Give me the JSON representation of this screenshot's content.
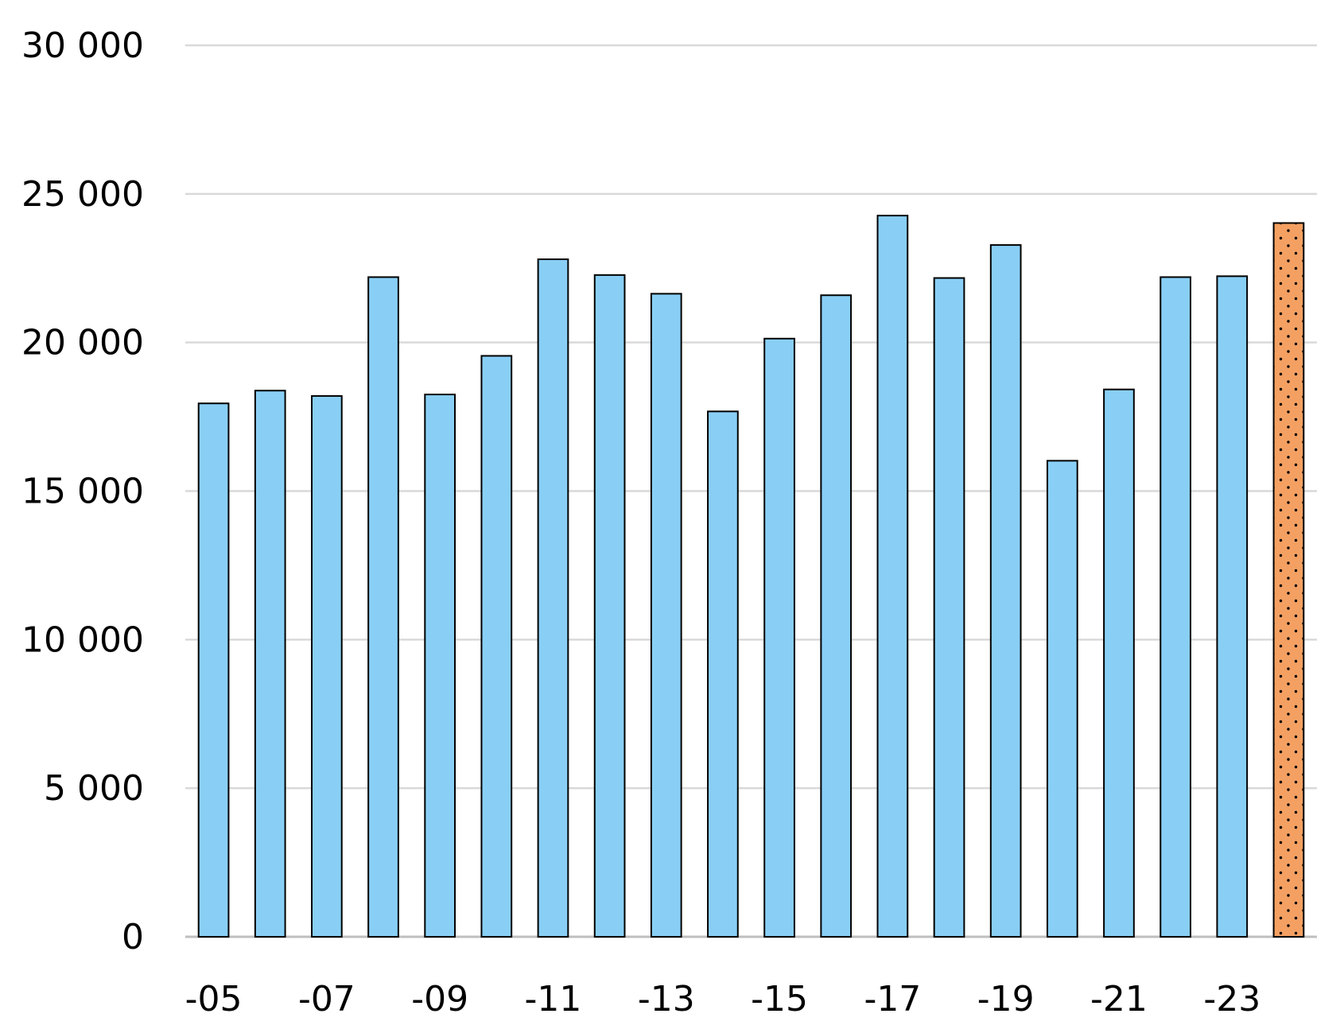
{
  "chart_data": {
    "type": "bar",
    "title": "",
    "xlabel": "",
    "ylabel": "",
    "ylim": [
      0,
      30000
    ],
    "yticks": [
      0,
      5000,
      10000,
      15000,
      20000,
      25000,
      30000
    ],
    "ytick_labels": [
      "0",
      "5 000",
      "10 000",
      "15 000",
      "20 000",
      "25 000",
      "30 000"
    ],
    "xtick_labels": [
      "-05",
      "-07",
      "-09",
      "-11",
      "-13",
      "-15",
      "-17",
      "-19",
      "-21",
      "-23"
    ],
    "grid": true,
    "legend": "none",
    "categories": [
      "2005",
      "2006",
      "2007",
      "2008",
      "2009",
      "2010",
      "2011",
      "2012",
      "2013",
      "2014",
      "2015",
      "2016",
      "2017",
      "2018",
      "2019",
      "2020",
      "2021",
      "2022",
      "2023",
      "2024"
    ],
    "values": [
      17950,
      18380,
      18200,
      22200,
      18250,
      19550,
      22800,
      22270,
      21640,
      17680,
      20130,
      21590,
      24270,
      22170,
      23280,
      16020,
      18420,
      22200,
      22230,
      24020
    ],
    "highlight_index": 19,
    "colors": {
      "bar": "#89cff5",
      "highlight": "#f4a062",
      "outline": "#000000",
      "grid": "#d9d9d9",
      "axis": "#bfbfbf"
    }
  }
}
